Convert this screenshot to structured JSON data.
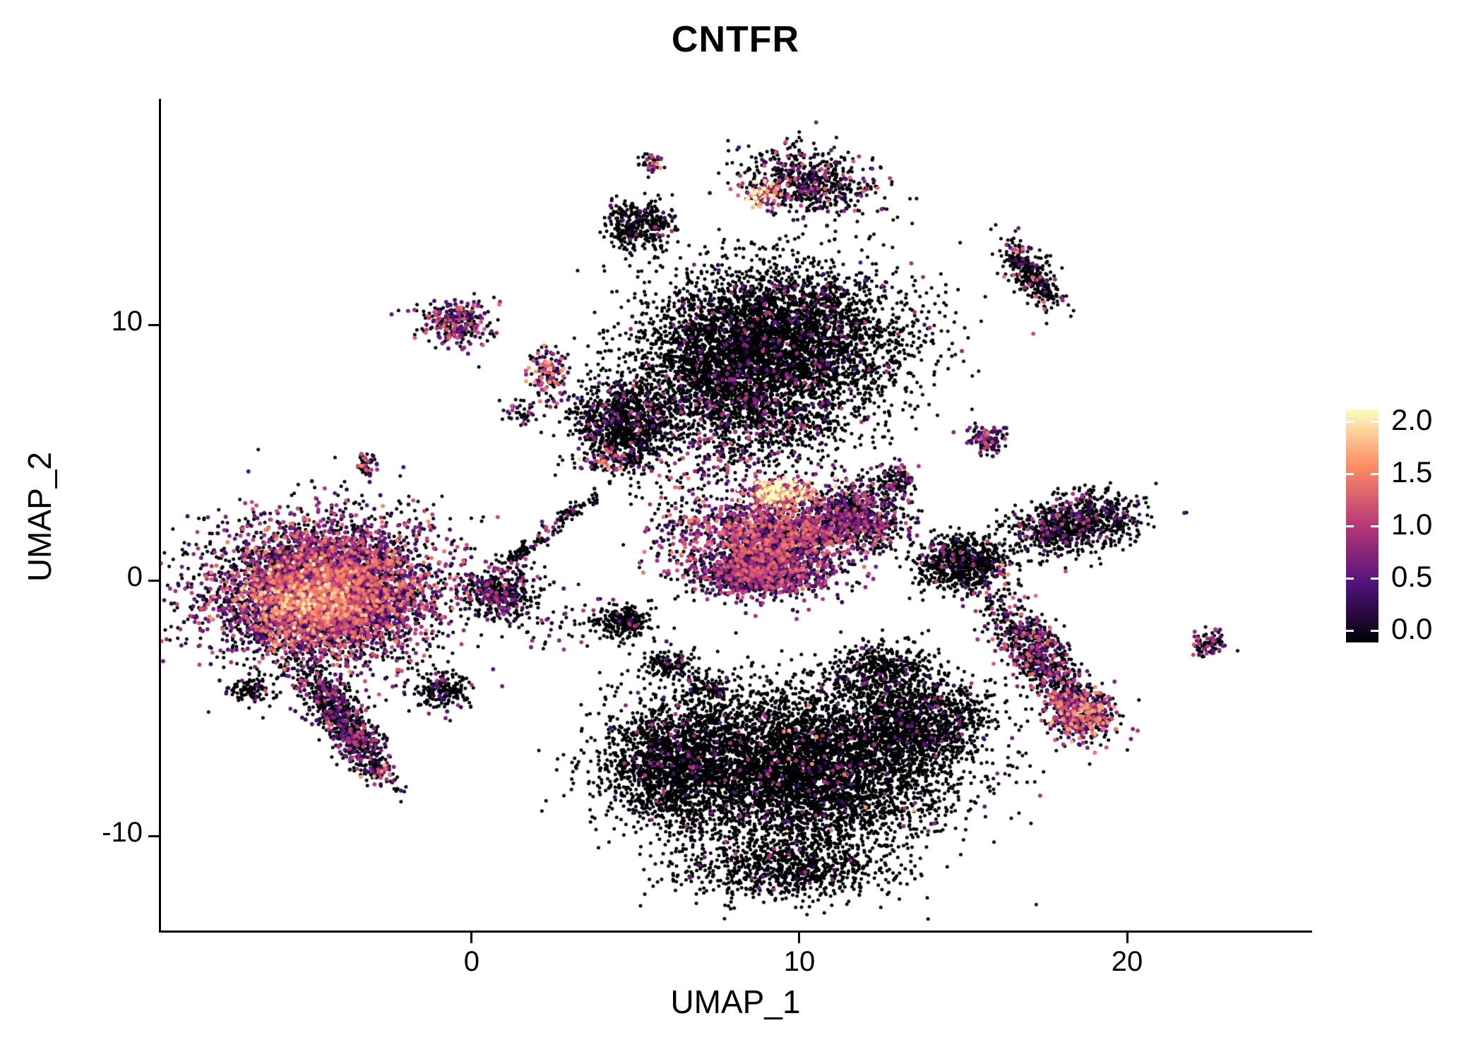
{
  "chart_data": {
    "type": "scatter",
    "title": "CNTFR",
    "xlabel": "UMAP_1",
    "ylabel": "UMAP_2",
    "xlim": [
      -9.48,
      25.58
    ],
    "ylim": [
      -13.7,
      18.84
    ],
    "grid": false,
    "legend_position": "right",
    "xticks": [
      {
        "v": 0,
        "label": "0"
      },
      {
        "v": 10,
        "label": "10"
      },
      {
        "v": 20,
        "label": "20"
      }
    ],
    "yticks": [
      {
        "v": -10,
        "label": "-10"
      },
      {
        "v": 0,
        "label": "0"
      },
      {
        "v": 10,
        "label": "10"
      }
    ],
    "colorbar": {
      "min": 0,
      "max": 2,
      "colormap": "magma",
      "ticks": [
        {
          "v": 2.0,
          "label": "2.0"
        },
        {
          "v": 1.5,
          "label": "1.5"
        },
        {
          "v": 1.0,
          "label": "1.0"
        },
        {
          "v": 0.5,
          "label": "0.5"
        },
        {
          "v": 0.0,
          "label": "0.0"
        }
      ],
      "stops": [
        {
          "t": 0.0,
          "color": "#000004"
        },
        {
          "t": 0.25,
          "color": "#51127c"
        },
        {
          "t": 0.5,
          "color": "#b73779"
        },
        {
          "t": 0.75,
          "color": "#fc8961"
        },
        {
          "t": 1.0,
          "color": "#fcfdbf"
        }
      ]
    },
    "point_radius_px": 2.5,
    "clusters": [
      {
        "name": "left-main-halo",
        "cx": -4.6,
        "cy": -0.5,
        "sx": 2.0,
        "sy": 1.6,
        "a": 0,
        "n": 2200,
        "f": 0.3,
        "s": 0.7
      },
      {
        "name": "left-main-core",
        "cx": -4.4,
        "cy": -0.4,
        "sx": 1.5,
        "sy": 1.2,
        "a": 0,
        "n": 3500,
        "f": 0.8,
        "s": 0.9
      },
      {
        "name": "left-main-hot",
        "cx": -4.9,
        "cy": -0.8,
        "sx": 0.9,
        "sy": 0.7,
        "a": 0,
        "n": 800,
        "f": 0.9,
        "s": 1.15
      },
      {
        "name": "left-tail",
        "cx": -3.9,
        "cy": -5.5,
        "sx": 1.3,
        "sy": 0.35,
        "a": -62,
        "n": 800,
        "f": 0.3,
        "s": 0.7
      },
      {
        "name": "left-tail-tip",
        "cx": -2.9,
        "cy": -7.4,
        "sx": 0.25,
        "sy": 0.2,
        "a": 0,
        "n": 50,
        "f": 0.65,
        "s": 1.0
      },
      {
        "name": "left-small-blob",
        "cx": -6.8,
        "cy": -4.3,
        "sx": 0.3,
        "sy": 0.25,
        "a": 0,
        "n": 90,
        "f": 0.12,
        "s": 0.6
      },
      {
        "name": "below-left-blob",
        "cx": -0.9,
        "cy": -4.3,
        "sx": 0.4,
        "sy": 0.35,
        "a": 0,
        "n": 200,
        "f": 0.1,
        "s": 0.6
      },
      {
        "name": "left-bridge-blob",
        "cx": 0.8,
        "cy": -0.5,
        "sx": 0.55,
        "sy": 0.5,
        "a": 0,
        "n": 380,
        "f": 0.3,
        "s": 0.65
      },
      {
        "name": "bridge-line-1",
        "cx": 1.6,
        "cy": 1.2,
        "sx": 0.8,
        "sy": 0.12,
        "a": 40,
        "n": 90,
        "f": 0.25,
        "s": 0.7
      },
      {
        "name": "bridge-line-2",
        "cx": 3.2,
        "cy": 2.8,
        "sx": 0.5,
        "sy": 0.12,
        "a": 40,
        "n": 60,
        "f": 0.25,
        "s": 0.7
      },
      {
        "name": "topleft-purple",
        "cx": -0.45,
        "cy": 10.1,
        "sx": 0.55,
        "sy": 0.4,
        "a": 0,
        "n": 280,
        "f": 0.5,
        "s": 0.8
      },
      {
        "name": "topleft-pink",
        "cx": 2.3,
        "cy": 8.1,
        "sx": 0.3,
        "sy": 0.5,
        "a": 0,
        "n": 140,
        "f": 0.55,
        "s": 1.0
      },
      {
        "name": "tiny-purple-midleft",
        "cx": -3.2,
        "cy": 4.6,
        "sx": 0.15,
        "sy": 0.3,
        "a": 0,
        "n": 50,
        "f": 0.5,
        "s": 0.9
      },
      {
        "name": "top-black-blob",
        "cx": 5.1,
        "cy": 13.9,
        "sx": 0.5,
        "sy": 0.5,
        "a": 0,
        "n": 350,
        "f": 0.07,
        "s": 0.6
      },
      {
        "name": "tiny-top-blob",
        "cx": 5.5,
        "cy": 16.3,
        "sx": 0.18,
        "sy": 0.22,
        "a": 0,
        "n": 40,
        "f": 0.35,
        "s": 0.9
      },
      {
        "name": "top-triangle",
        "cx": 10.3,
        "cy": 15.6,
        "sx": 1.1,
        "sy": 0.65,
        "a": -15,
        "n": 620,
        "f": 0.2,
        "s": 0.8
      },
      {
        "name": "top-triangle-hot",
        "cx": 8.9,
        "cy": 15.1,
        "sx": 0.25,
        "sy": 0.3,
        "a": 0,
        "n": 90,
        "f": 0.85,
        "s": 1.3
      },
      {
        "name": "top-center-main",
        "cx": 9.3,
        "cy": 9.4,
        "sx": 1.9,
        "sy": 1.4,
        "a": 0,
        "n": 4500,
        "f": 0.05,
        "s": 0.6
      },
      {
        "name": "top-center-left-lobe",
        "cx": 4.7,
        "cy": 6.1,
        "sx": 0.8,
        "sy": 0.9,
        "a": 0,
        "n": 1200,
        "f": 0.1,
        "s": 0.7
      },
      {
        "name": "top-center-orange-dots",
        "cx": 4.1,
        "cy": 4.7,
        "sx": 0.35,
        "sy": 0.3,
        "a": 0,
        "n": 60,
        "f": 0.55,
        "s": 1.1
      },
      {
        "name": "top-center-bridge",
        "cx": 7.4,
        "cy": 7.6,
        "sx": 1.0,
        "sy": 1.0,
        "a": 0,
        "n": 800,
        "f": 0.06,
        "s": 0.6
      },
      {
        "name": "top-center-lower",
        "cx": 9.8,
        "cy": 6.3,
        "sx": 1.2,
        "sy": 0.8,
        "a": 0,
        "n": 500,
        "f": 0.1,
        "s": 0.7
      },
      {
        "name": "mid-bright-band",
        "cx": 9.4,
        "cy": 3.4,
        "sx": 0.55,
        "sy": 0.28,
        "a": 0,
        "n": 350,
        "f": 0.9,
        "s": 1.35
      },
      {
        "name": "mid-bright-main",
        "cx": 9.3,
        "cy": 1.6,
        "sx": 1.2,
        "sy": 0.8,
        "a": 0,
        "n": 1600,
        "f": 0.65,
        "s": 0.85
      },
      {
        "name": "mid-bright-lower",
        "cx": 8.7,
        "cy": 0.2,
        "sx": 1.0,
        "sy": 0.45,
        "a": 0,
        "n": 900,
        "f": 0.6,
        "s": 0.75
      },
      {
        "name": "mid-right-wing",
        "cx": 11.7,
        "cy": 2.5,
        "sx": 0.8,
        "sy": 0.7,
        "a": 0,
        "n": 800,
        "f": 0.35,
        "s": 0.7
      },
      {
        "name": "mid-right-tip",
        "cx": 12.9,
        "cy": 3.9,
        "sx": 0.35,
        "sy": 0.3,
        "a": 0,
        "n": 120,
        "f": 0.25,
        "s": 0.7
      },
      {
        "name": "mid-left-scatter",
        "cx": 6.3,
        "cy": 2.0,
        "sx": 0.6,
        "sy": 0.9,
        "a": 0,
        "n": 150,
        "f": 0.5,
        "s": 0.9
      },
      {
        "name": "island-black-1",
        "cx": 4.6,
        "cy": -1.6,
        "sx": 0.45,
        "sy": 0.35,
        "a": 0,
        "n": 250,
        "f": 0.05,
        "s": 0.6
      },
      {
        "name": "island-black-2",
        "cx": 6.0,
        "cy": -3.3,
        "sx": 0.4,
        "sy": 0.25,
        "a": 0,
        "n": 150,
        "f": 0.05,
        "s": 0.6
      },
      {
        "name": "island-black-3",
        "cx": 7.2,
        "cy": -4.2,
        "sx": 0.3,
        "sy": 0.2,
        "a": 0,
        "n": 80,
        "f": 0.05,
        "s": 0.6
      },
      {
        "name": "bottom-main",
        "cx": 10.0,
        "cy": -7.4,
        "sx": 2.3,
        "sy": 1.6,
        "a": 0,
        "n": 5500,
        "f": 0.03,
        "s": 0.6
      },
      {
        "name": "bottom-left-lobe",
        "cx": 6.1,
        "cy": -7.1,
        "sx": 1.1,
        "sy": 1.2,
        "a": 0,
        "n": 1500,
        "f": 0.03,
        "s": 0.6
      },
      {
        "name": "bottom-right-lobe",
        "cx": 13.6,
        "cy": -5.5,
        "sx": 1.1,
        "sy": 0.9,
        "a": 0,
        "n": 1200,
        "f": 0.05,
        "s": 0.6
      },
      {
        "name": "bottom-tail",
        "cx": 9.7,
        "cy": -11.3,
        "sx": 1.6,
        "sy": 0.6,
        "a": 0,
        "n": 800,
        "f": 0.02,
        "s": 0.6
      },
      {
        "name": "bottom-upper-spur",
        "cx": 12.5,
        "cy": -3.5,
        "sx": 0.7,
        "sy": 0.5,
        "a": 0,
        "n": 400,
        "f": 0.05,
        "s": 0.6
      },
      {
        "name": "bottom-sprinkle",
        "cx": 9.5,
        "cy": -7.5,
        "sx": 2.0,
        "sy": 1.5,
        "a": 0,
        "n": 25,
        "f": 0.7,
        "s": 1.1
      },
      {
        "name": "right-mid-black",
        "cx": 15.0,
        "cy": 0.7,
        "sx": 0.75,
        "sy": 0.55,
        "a": 0,
        "n": 700,
        "f": 0.08,
        "s": 0.6
      },
      {
        "name": "right-mid-dots",
        "cx": 16.2,
        "cy": 0.3,
        "sx": 0.3,
        "sy": 0.3,
        "a": 0,
        "n": 8,
        "f": 0.8,
        "s": 1.1
      },
      {
        "name": "right-diag-band",
        "cx": 17.3,
        "cy": -3.0,
        "sx": 1.4,
        "sy": 0.45,
        "a": -58,
        "n": 800,
        "f": 0.35,
        "s": 0.8
      },
      {
        "name": "right-diag-hot",
        "cx": 18.6,
        "cy": -5.2,
        "sx": 0.55,
        "sy": 0.55,
        "a": 0,
        "n": 450,
        "f": 0.7,
        "s": 1.0
      },
      {
        "name": "right-black-2",
        "cx": 18.4,
        "cy": 2.2,
        "sx": 1.0,
        "sy": 0.55,
        "a": 10,
        "n": 900,
        "f": 0.12,
        "s": 0.7
      },
      {
        "name": "small-purple-right",
        "cx": 15.7,
        "cy": 5.5,
        "sx": 0.3,
        "sy": 0.3,
        "a": 0,
        "n": 110,
        "f": 0.45,
        "s": 0.8
      },
      {
        "name": "far-right-top",
        "cx": 17.1,
        "cy": 11.9,
        "sx": 0.75,
        "sy": 0.3,
        "a": -60,
        "n": 320,
        "f": 0.12,
        "s": 0.8
      },
      {
        "name": "far-right-top-dot",
        "cx": 16.7,
        "cy": 12.9,
        "sx": 0.12,
        "sy": 0.12,
        "a": 0,
        "n": 15,
        "f": 0.7,
        "s": 1.1
      },
      {
        "name": "far-right-small",
        "cx": 22.5,
        "cy": -2.5,
        "sx": 0.28,
        "sy": 0.25,
        "a": 0,
        "n": 90,
        "f": 0.3,
        "s": 0.8
      },
      {
        "name": "gap-scatter",
        "cx": 7.8,
        "cy": 5.0,
        "sx": 1.0,
        "sy": 0.9,
        "a": 0,
        "n": 250,
        "f": 0.3,
        "s": 0.8
      },
      {
        "name": "sparse-left-mid",
        "cx": 2.5,
        "cy": -1.5,
        "sx": 0.8,
        "sy": 0.8,
        "a": 0,
        "n": 60,
        "f": 0.2,
        "s": 0.7
      },
      {
        "name": "sparse-topmid",
        "cx": 1.6,
        "cy": 6.6,
        "sx": 0.3,
        "sy": 0.3,
        "a": 0,
        "n": 40,
        "f": 0.4,
        "s": 0.8
      }
    ]
  }
}
